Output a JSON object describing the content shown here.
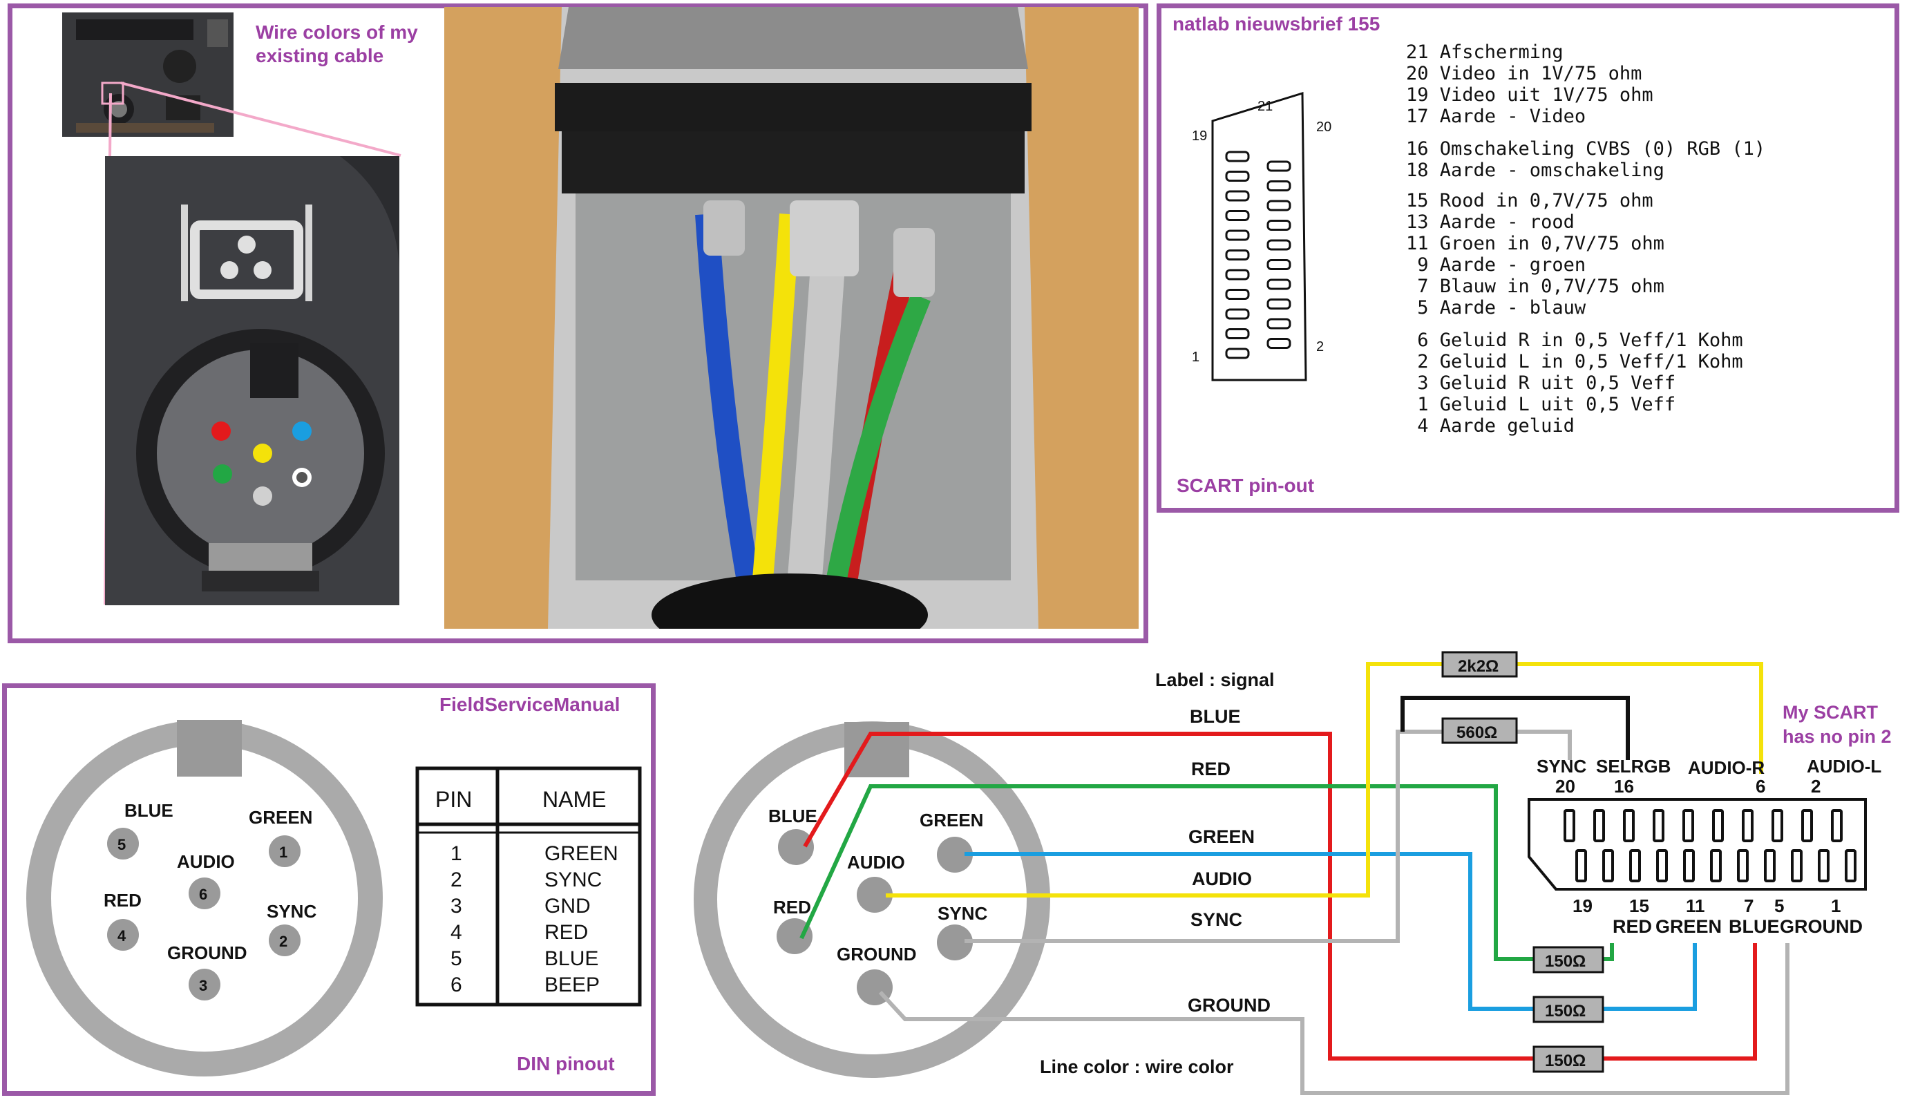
{
  "photo_panel": {
    "caption": "Wire colors of my existing cable"
  },
  "scart_panel": {
    "source": "natlab nieuwsbrief 155",
    "caption": "SCART pin-out",
    "connector_pins": {
      "top_left": "21",
      "top_right": "20",
      "left": "19",
      "bottom_left": "1",
      "bottom_right": "2"
    },
    "pins": [
      "21 Afscherming",
      "20 Video in 1V/75 ohm",
      "19 Video uit 1V/75 ohm",
      "17 Aarde - Video",
      "16 Omschakeling CVBS (0) RGB (1)",
      "18 Aarde - omschakeling",
      "15 Rood in 0,7V/75 ohm",
      "13 Aarde - rood",
      "11 Groen in 0,7V/75 ohm",
      " 9 Aarde - groen",
      " 7 Blauw in 0,7V/75 ohm",
      " 5 Aarde - blauw",
      " 6 Geluid R in 0,5 Veff/1 Kohm",
      " 2 Geluid L in 0,5 Veff/1 Kohm",
      " 3 Geluid R uit 0,5 Veff",
      " 1 Geluid L uit 0,5 Veff",
      " 4 Aarde geluid"
    ]
  },
  "din_panel": {
    "source": "FieldServiceManual",
    "caption": "DIN pinout",
    "pins": [
      {
        "name": "BLUE",
        "num": "5"
      },
      {
        "name": "GREEN",
        "num": "1"
      },
      {
        "name": "AUDIO",
        "num": "6"
      },
      {
        "name": "RED",
        "num": "4"
      },
      {
        "name": "SYNC",
        "num": "2"
      },
      {
        "name": "GROUND",
        "num": "3"
      }
    ],
    "table": {
      "headers": [
        "PIN",
        "NAME"
      ],
      "rows": [
        [
          "1",
          "GREEN"
        ],
        [
          "2",
          "SYNC"
        ],
        [
          "3",
          "GND"
        ],
        [
          "4",
          "RED"
        ],
        [
          "5",
          "BLUE"
        ],
        [
          "6",
          "BEEP"
        ]
      ]
    }
  },
  "wiring": {
    "label_header": "Label : signal",
    "line_header": "Line color : wire color",
    "note": [
      "My SCART",
      "has no pin 2"
    ],
    "din_labels": [
      "BLUE",
      "GREEN",
      "AUDIO",
      "RED",
      "SYNC",
      "GROUND"
    ],
    "signals": [
      "BLUE",
      "RED",
      "GREEN",
      "AUDIO",
      "SYNC",
      "GROUND"
    ],
    "resistors": [
      "2k2Ω",
      "560Ω",
      "150Ω",
      "150Ω",
      "150Ω"
    ],
    "scart_top_names": [
      "SYNC",
      "SELRGB",
      "AUDIO-R",
      "AUDIO-L"
    ],
    "scart_top_nums": [
      "20",
      "16",
      "6",
      "2"
    ],
    "scart_bottom_nums": [
      "19",
      "15",
      "11",
      "7",
      "5",
      "1"
    ],
    "scart_bottom_names": [
      "RED",
      "GREEN",
      "BLUE",
      "GROUND"
    ]
  },
  "colors": {
    "frame": "#9b59a7",
    "red": "#e31a1c",
    "green": "#22a744",
    "blue": "#1a9ee0",
    "yellow": "#f4e20a",
    "gray": "#b3b3b3",
    "black": "#111111"
  }
}
